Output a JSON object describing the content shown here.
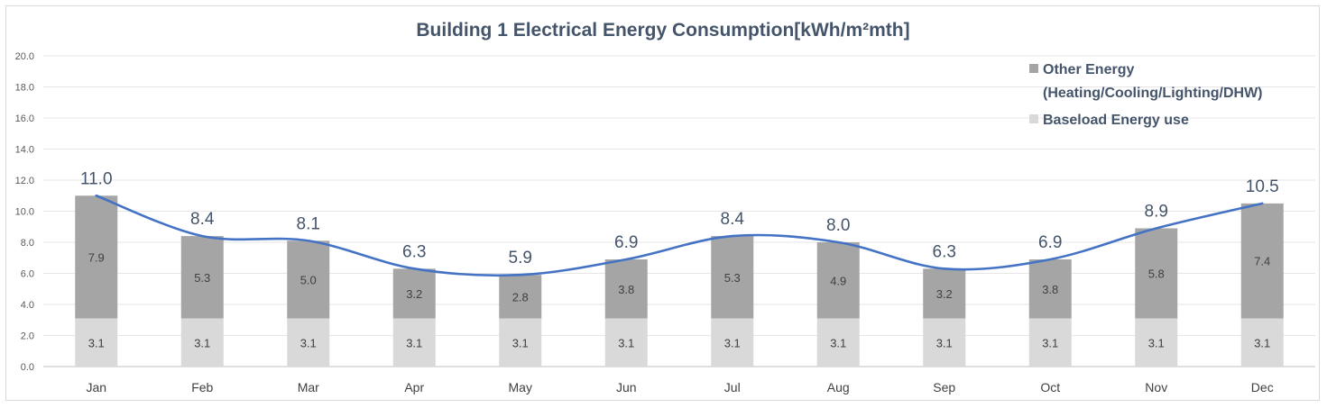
{
  "chart_data": {
    "type": "bar",
    "stacked": true,
    "title": "Building 1 Electrical Energy Consumption[kWh/m²mth]",
    "categories": [
      "Jan",
      "Feb",
      "Mar",
      "Apr",
      "May",
      "Jun",
      "Jul",
      "Aug",
      "Sep",
      "Oct",
      "Nov",
      "Dec"
    ],
    "series": [
      {
        "name": "Baseload Energy use",
        "values": [
          3.1,
          3.1,
          3.1,
          3.1,
          3.1,
          3.1,
          3.1,
          3.1,
          3.1,
          3.1,
          3.1,
          3.1
        ],
        "color": "#d9d9d9",
        "value_labels": [
          "3.1",
          "3.1",
          "3.1",
          "3.1",
          "3.1",
          "3.1",
          "3.1",
          "3.1",
          "3.1",
          "3.1",
          "3.1",
          "3.1"
        ]
      },
      {
        "name": "Other Energy (Heating/Cooling/Lighting/DHW)",
        "legend_lines": [
          "Other Energy",
          "(Heating/Cooling/Lighting/DHW)"
        ],
        "values": [
          7.9,
          5.3,
          5.0,
          3.2,
          2.8,
          3.8,
          5.3,
          4.9,
          3.2,
          3.8,
          5.8,
          7.4
        ],
        "color": "#a5a5a5",
        "value_labels": [
          "7.9",
          "5.3",
          "5.0",
          "3.2",
          "2.8",
          "3.8",
          "5.3",
          "4.9",
          "3.2",
          "3.8",
          "5.8",
          "7.4"
        ]
      }
    ],
    "totals": [
      11.0,
      8.4,
      8.1,
      6.3,
      5.9,
      6.9,
      8.4,
      8.0,
      6.3,
      6.9,
      8.9,
      10.5
    ],
    "total_labels": [
      "11.0",
      "8.4",
      "8.1",
      "6.3",
      "5.9",
      "6.9",
      "8.4",
      "8.0",
      "6.3",
      "6.9",
      "8.9",
      "10.5"
    ],
    "trend_line": {
      "type": "smoothed-line",
      "through": "totals",
      "color": "#4472c4"
    },
    "ylim": [
      0,
      20
    ],
    "y_ticks": [
      "0.0",
      "2.0",
      "4.0",
      "6.0",
      "8.0",
      "10.0",
      "12.0",
      "14.0",
      "16.0",
      "18.0",
      "20.0"
    ],
    "grid": true,
    "xlabel": "",
    "ylabel": "",
    "legend_position": "top-right"
  }
}
